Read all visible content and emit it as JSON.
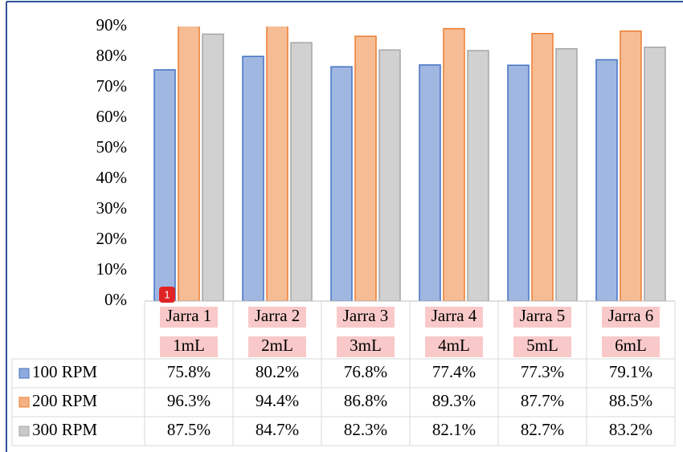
{
  "chart_data": {
    "type": "bar",
    "categories": [
      [
        "Jarra 1",
        "1mL"
      ],
      [
        "Jarra 2",
        "2mL"
      ],
      [
        "Jarra 3",
        "3mL"
      ],
      [
        "Jarra 4",
        "4mL"
      ],
      [
        "Jarra 5",
        "5mL"
      ],
      [
        "Jarra 6",
        "6mL"
      ]
    ],
    "series": [
      {
        "name": "100 RPM",
        "color": "#8faadc",
        "stroke": "#4472c4",
        "values": [
          75.8,
          80.2,
          76.8,
          77.4,
          77.3,
          79.1
        ],
        "value_labels": [
          "75.8%",
          "80.2%",
          "76.8%",
          "77.4%",
          "77.3%",
          "79.1%"
        ]
      },
      {
        "name": "200 RPM",
        "color": "#f4b183",
        "stroke": "#ed7d31",
        "values": [
          96.3,
          94.4,
          86.8,
          89.3,
          87.7,
          88.5
        ],
        "value_labels": [
          "96.3%",
          "94.4%",
          "86.8%",
          "89.3%",
          "87.7%",
          "88.5%"
        ]
      },
      {
        "name": "300 RPM",
        "color": "#c9c9c9",
        "stroke": "#a5a5a5",
        "values": [
          87.5,
          84.7,
          82.3,
          82.1,
          82.7,
          83.2
        ],
        "value_labels": [
          "87.5%",
          "84.7%",
          "82.3%",
          "82.1%",
          "82.7%",
          "83.2%"
        ]
      }
    ],
    "ylim": [
      0,
      90
    ],
    "yticks": [
      {
        "value": 0,
        "label": "0%"
      },
      {
        "value": 10,
        "label": "10%"
      },
      {
        "value": 20,
        "label": "20%"
      },
      {
        "value": 30,
        "label": "30%"
      },
      {
        "value": 40,
        "label": "40%"
      },
      {
        "value": 50,
        "label": "50%"
      },
      {
        "value": 60,
        "label": "60%"
      },
      {
        "value": 70,
        "label": "70%"
      },
      {
        "value": 80,
        "label": "80%"
      },
      {
        "value": 90,
        "label": "90%"
      }
    ],
    "data_table": true
  },
  "badge": "1"
}
